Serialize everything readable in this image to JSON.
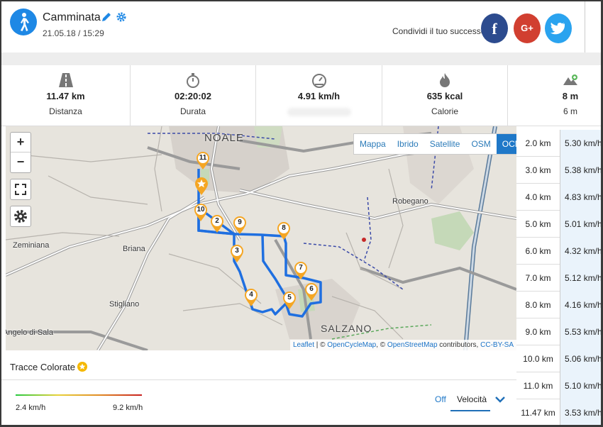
{
  "activity": {
    "icon": "walking-person-icon",
    "title": "Camminata",
    "datetime": "21.05.18 / 15:29"
  },
  "share": {
    "text": "Condividi il tuo successo",
    "facebook_glyph": "f",
    "google_glyph": "G+",
    "twitter_icon": "twitter-bird-icon"
  },
  "stats": [
    {
      "icon": "road-icon",
      "value": "11.47 km",
      "label": "Distanza"
    },
    {
      "icon": "stopwatch-icon",
      "value": "02:20:02",
      "label": "Durata"
    },
    {
      "icon": "speedometer-icon",
      "value": "4.91 km/h",
      "label": ""
    },
    {
      "icon": "flame-icon",
      "value": "635 kcal",
      "label": "Calorie"
    },
    {
      "icon": "elevation-icon",
      "value": "8 m",
      "label": "6 m"
    }
  ],
  "map": {
    "layers": [
      "Mappa",
      "Ibrido",
      "Satellite",
      "OSM",
      "OCM"
    ],
    "active_layer": "OCM",
    "zoom_in": "+",
    "zoom_out": "−",
    "places": [
      "NOALE",
      "Robegano",
      "Zeminiana",
      "Briana",
      "Stigliano",
      "Angelo di Sala",
      "SALZANO"
    ],
    "markers": [
      "11",
      "10",
      "2",
      "9",
      "8",
      "3",
      "7",
      "4",
      "5",
      "6"
    ],
    "attribution": {
      "leaflet": "Leaflet",
      "sep1": " | © ",
      "ocm": "OpenCycleMap",
      "sep2": ", © ",
      "osm": "OpenStreetMap",
      "contrib": " contributors, ",
      "license": "CC-BY-SA"
    },
    "route_color": "#1f6fe0"
  },
  "splits": [
    {
      "km": "2.0 km",
      "speed": "5.30 km/h"
    },
    {
      "km": "3.0 km",
      "speed": "5.38 km/h"
    },
    {
      "km": "4.0 km",
      "speed": "4.83 km/h"
    },
    {
      "km": "5.0 km",
      "speed": "5.01 km/h"
    },
    {
      "km": "6.0 km",
      "speed": "4.32 km/h"
    },
    {
      "km": "7.0 km",
      "speed": "5.12 km/h"
    },
    {
      "km": "8.0 km",
      "speed": "4.16 km/h"
    },
    {
      "km": "9.0 km",
      "speed": "5.53 km/h"
    },
    {
      "km": "10.0 km",
      "speed": "5.06 km/h"
    },
    {
      "km": "11.0 km",
      "speed": "5.10 km/h"
    },
    {
      "km": "11.47 km",
      "speed": "3.53 km/h"
    }
  ],
  "tracks": {
    "title": "Tracce Colorate",
    "min": "2.4 km/h",
    "max": "9.2 km/h",
    "option_off": "Off",
    "option_selected": "Velocità"
  },
  "colors": {
    "accent": "#1e88e5",
    "facebook": "#2c4b8e",
    "google": "#d13f30",
    "twitter": "#2aa3ef",
    "marker": "#f5a623"
  }
}
